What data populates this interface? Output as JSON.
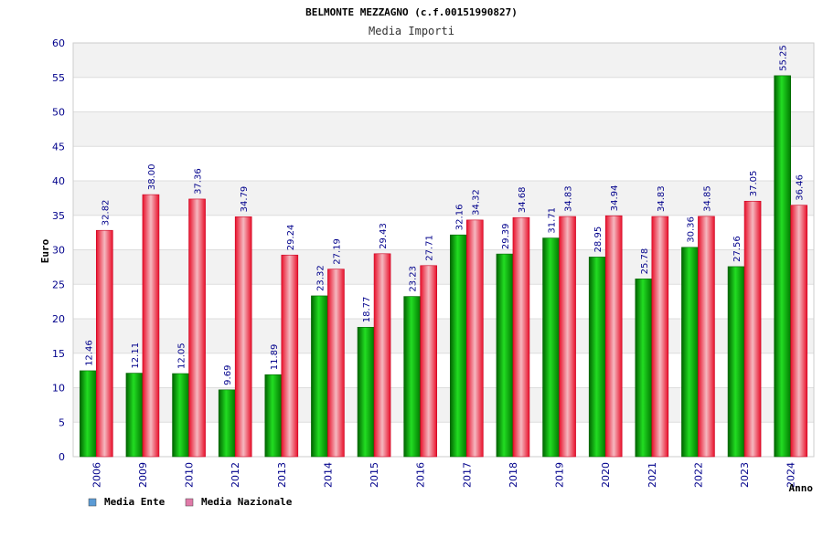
{
  "chart_data": {
    "type": "bar",
    "title": "BELMONTE MEZZAGNO (c.f.00151990827)",
    "subtitle": "Media Importi",
    "ylabel": "Euro",
    "xlabel": "Anno",
    "ylim": [
      0,
      60
    ],
    "yticks": [
      0,
      5,
      10,
      15,
      20,
      25,
      30,
      35,
      40,
      45,
      50,
      55,
      60
    ],
    "grid": true,
    "legend_position": "bottom-left",
    "categories": [
      "2006",
      "2009",
      "2010",
      "2012",
      "2013",
      "2014",
      "2015",
      "2016",
      "2017",
      "2018",
      "2019",
      "2020",
      "2021",
      "2022",
      "2023",
      "2024"
    ],
    "series": [
      {
        "name": "Media Ente",
        "color": "#00aa00",
        "legend_color": "#5b9bd5",
        "values": [
          12.46,
          12.11,
          12.05,
          9.69,
          11.89,
          23.32,
          18.77,
          23.23,
          32.16,
          29.39,
          31.71,
          28.95,
          25.78,
          30.36,
          27.56,
          55.25
        ],
        "labels": [
          "12.46",
          "12.11",
          "12.05",
          "9.69",
          "11.89",
          "23.32",
          "18.77",
          "23.23",
          "32.16",
          "29.39",
          "31.71",
          "28.95",
          "25.78",
          "30.36",
          "27.56",
          "55.25"
        ]
      },
      {
        "name": "Media Nazionale",
        "color": "#e8102a",
        "legend_color": "#e07aa8",
        "values": [
          32.82,
          38.0,
          37.36,
          34.79,
          29.24,
          27.19,
          29.43,
          27.71,
          34.32,
          34.68,
          34.83,
          34.94,
          34.83,
          34.85,
          37.05,
          36.46
        ],
        "labels": [
          "32.82",
          "38.00",
          "37.36",
          "34.79",
          "29.24",
          "27.19",
          "29.43",
          "27.71",
          "34.32",
          "34.68",
          "34.83",
          "34.94",
          "34.83",
          "34.85",
          "37.05",
          "36.46"
        ]
      }
    ]
  }
}
